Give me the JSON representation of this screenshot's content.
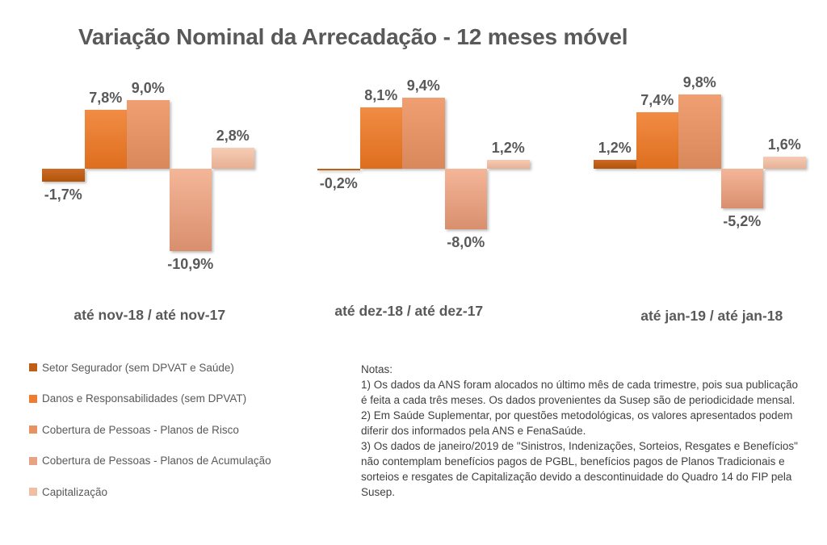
{
  "title": "Variação Nominal da Arrecadação - 12 meses móvel",
  "chart_data": {
    "type": "bar",
    "unit": "%",
    "decimal_separator": ",",
    "grid": false,
    "legend_position": "bottom-left",
    "ylim": [
      -12,
      11
    ],
    "categories": [
      "até nov-18 / até nov-17",
      "até dez-18 / até dez-17",
      "até jan-19 / até jan-18"
    ],
    "series": [
      {
        "key": "setor-segurador",
        "name": "Setor Segurador (sem DPVAT e Saúde)",
        "color": "#bf5e17",
        "color_top": "#cc6a26",
        "color_bottom": "#b25409",
        "values": [
          -1.7,
          -0.2,
          1.2
        ]
      },
      {
        "key": "danos-responsabilidades",
        "name": "Danos e Responsabilidades (sem DPVAT)",
        "color": "#ed7d31",
        "color_top": "#f18c44",
        "color_bottom": "#de6e1e",
        "values": [
          7.8,
          8.1,
          7.4
        ]
      },
      {
        "key": "cobertura-pessoas-risco",
        "name": "Cobertura de Pessoas - Planos de Risco",
        "color": "#e69261",
        "color_top": "#ef9f72",
        "color_bottom": "#d8885a",
        "values": [
          9.0,
          9.4,
          9.8
        ]
      },
      {
        "key": "cobertura-pessoas-acumulacao",
        "name": "Cobertura de Pessoas - Planos de Acumulação",
        "color": "#e7a383",
        "color_top": "#f4b698",
        "color_bottom": "#d98f6e",
        "values": [
          -10.9,
          -8.0,
          -5.2
        ]
      },
      {
        "key": "capitalizacao",
        "name": "Capitalização",
        "color": "#f0bfa3",
        "color_top": "#f6ccb4",
        "color_bottom": "#e7b094",
        "values": [
          2.8,
          1.2,
          1.6
        ]
      }
    ]
  },
  "notes": {
    "lines": [
      "Notas:",
      "1) Os dados da ANS foram alocados no último mês de cada trimestre, pois sua publicação é feita a cada três meses. Os dados provenientes da Susep são de periodicidade mensal.",
      "2) Em Saúde Suplementar, por questões metodológicas, os valores apresentados podem diferir dos informados pela ANS e FenaSaúde.",
      "3) Os dados de janeiro/2019 de \"Sinistros, Indenizações, Sorteios, Resgates e Benefícios\" não contemplam benefícios pagos de PGBL, benefícios pagos de Planos Tradicionais e sorteios e resgates de Capitalização devido a descontinuidade do Quadro 14 do FIP pela Susep."
    ]
  },
  "colors": {
    "label_gray": "#595959",
    "notes_gray": "#3f3f3f",
    "background": "#ffffff"
  }
}
